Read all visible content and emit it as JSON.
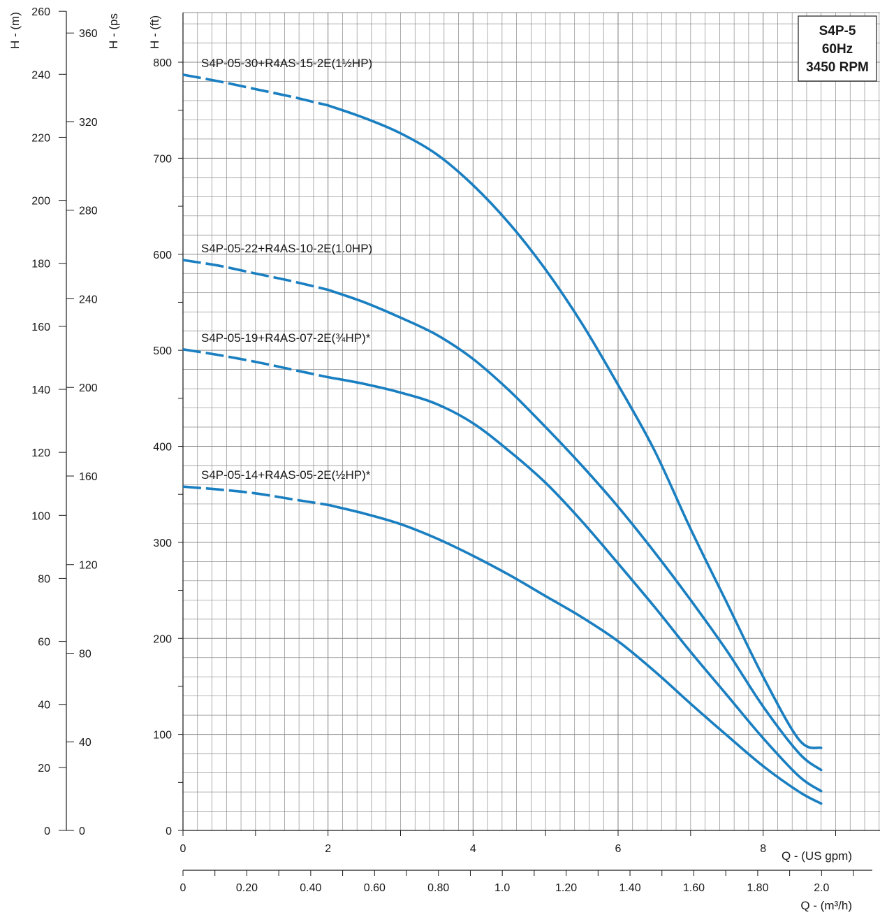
{
  "chart_data": {
    "type": "line",
    "title_lines": [
      "S4P-5",
      "60Hz",
      "3450 RPM"
    ],
    "grid": true,
    "colors": {
      "series": "#1a7fc1",
      "grid": "#8a8a8a",
      "axis": "#1a1a1a"
    },
    "x_gpm": {
      "label": "Q - (US gpm)",
      "range": [
        0,
        9.6
      ],
      "ticks": [
        "0",
        "2",
        "4",
        "6",
        "8"
      ],
      "tick_values": [
        0,
        2,
        4,
        6,
        8
      ]
    },
    "x_m3h": {
      "label": "Q - (m³/h)",
      "range": [
        0,
        2.2
      ],
      "ticks": [
        "0",
        "0.20",
        "0.40",
        "0.60",
        "0.80",
        "1.0",
        "1.20",
        "1.40",
        "1.60",
        "1.80",
        "2.0"
      ],
      "tick_values": [
        0,
        0.2,
        0.4,
        0.6,
        0.8,
        1.0,
        1.2,
        1.4,
        1.6,
        1.8,
        2.0
      ]
    },
    "y_ft": {
      "label": "H - (ft)",
      "range": [
        0,
        850
      ],
      "ticks": [
        "0",
        "100",
        "200",
        "300",
        "400",
        "500",
        "600",
        "700",
        "800"
      ],
      "tick_values": [
        0,
        100,
        200,
        300,
        400,
        500,
        600,
        700,
        800
      ]
    },
    "y_m": {
      "label": "H - (m)",
      "range": [
        0,
        260
      ],
      "ticks": [
        "0",
        "20",
        "40",
        "60",
        "80",
        "100",
        "120",
        "140",
        "160",
        "180",
        "200",
        "220",
        "240",
        "260"
      ],
      "tick_values": [
        0,
        20,
        40,
        60,
        80,
        100,
        120,
        140,
        160,
        180,
        200,
        220,
        240,
        260
      ]
    },
    "y_psi": {
      "label": "H - (ps",
      "range": [
        0,
        370
      ],
      "ticks": [
        "0",
        "40",
        "80",
        "120",
        "160",
        "200",
        "240",
        "280",
        "320",
        "360"
      ],
      "tick_values": [
        0,
        40,
        80,
        120,
        160,
        200,
        240,
        280,
        320,
        360
      ]
    },
    "series": [
      {
        "name": "S4P-05-30+R4AS-15-2E(1½HP)",
        "dashed_until": 2.0,
        "x": [
          0,
          0.5,
          1.0,
          1.5,
          2.0,
          2.5,
          3.0,
          3.5,
          4.0,
          4.5,
          5.0,
          5.5,
          6.0,
          6.5,
          7.0,
          7.5,
          8.0,
          8.5,
          8.8
        ],
        "y": [
          787,
          780,
          772,
          764,
          755,
          742,
          726,
          704,
          672,
          632,
          584,
          528,
          464,
          396,
          314,
          237,
          160,
          94,
          86
        ]
      },
      {
        "name": "S4P-05-22+R4AS-10-2E(1.0HP)",
        "dashed_until": 2.0,
        "x": [
          0,
          0.5,
          1.0,
          1.5,
          2.0,
          2.5,
          3.0,
          3.5,
          4.0,
          4.5,
          5.0,
          5.5,
          6.0,
          6.5,
          7.0,
          7.5,
          8.0,
          8.5,
          8.8
        ],
        "y": [
          594,
          588,
          580,
          572,
          563,
          550,
          534,
          516,
          491,
          458,
          420,
          380,
          337,
          290,
          240,
          187,
          129,
          80,
          63
        ]
      },
      {
        "name": "S4P-05-19+R4AS-07-2E(¾HP)*",
        "dashed_until": 1.7,
        "x": [
          0,
          0.5,
          1.0,
          1.5,
          2.0,
          2.5,
          3.0,
          3.5,
          4.0,
          4.5,
          5.0,
          5.5,
          6.0,
          6.5,
          7.0,
          7.5,
          8.0,
          8.5,
          8.8
        ],
        "y": [
          501,
          495,
          488,
          480,
          472,
          465,
          456,
          444,
          424,
          395,
          362,
          322,
          278,
          233,
          186,
          141,
          96,
          56,
          41
        ]
      },
      {
        "name": "S4P-05-14+R4AS-05-2E(½HP)*",
        "dashed_until": 1.7,
        "x": [
          0,
          0.5,
          1.0,
          1.5,
          2.0,
          2.5,
          3.0,
          3.5,
          4.0,
          4.5,
          5.0,
          5.5,
          6.0,
          6.5,
          7.0,
          7.5,
          8.0,
          8.5,
          8.8
        ],
        "y": [
          358,
          355,
          351,
          345,
          339,
          330,
          319,
          304,
          286,
          266,
          244,
          222,
          197,
          166,
          132,
          99,
          67,
          40,
          28
        ]
      }
    ]
  }
}
